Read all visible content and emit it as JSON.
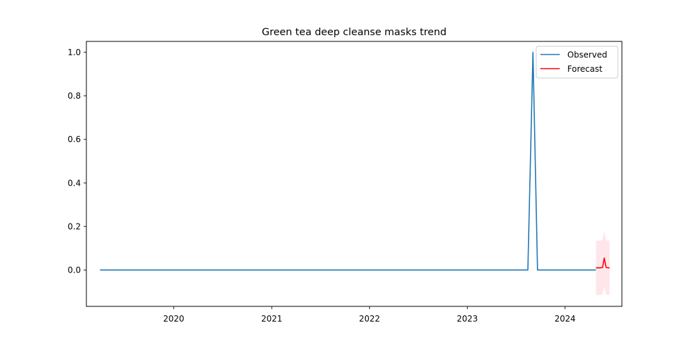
{
  "chart_data": {
    "type": "line",
    "title": "Green tea deep cleanse masks trend",
    "xlabel": "",
    "ylabel": "",
    "xlim": [
      "2019-02-09",
      "2024-07-31"
    ],
    "ylim": [
      -0.167,
      1.05
    ],
    "x_ticks": [
      "2020",
      "2021",
      "2022",
      "2023",
      "2024"
    ],
    "y_ticks": [
      "0.0",
      "0.2",
      "0.4",
      "0.6",
      "0.8",
      "1.0"
    ],
    "legend": {
      "position": "top-right",
      "entries": [
        "Observed",
        "Forecast"
      ]
    },
    "grid": false,
    "series": [
      {
        "name": "Observed",
        "color": "#1f77b4",
        "points": [
          [
            "2019-04-01",
            0.0
          ],
          [
            "2023-08-15",
            0.0
          ],
          [
            "2023-09-03",
            1.0
          ],
          [
            "2023-09-20",
            0.0
          ],
          [
            "2024-04-25",
            0.0
          ]
        ]
      },
      {
        "name": "Forecast",
        "color": "#ff0000",
        "points": [
          [
            "2024-04-25",
            0.01
          ],
          [
            "2024-05-10",
            0.01
          ],
          [
            "2024-05-20",
            0.012
          ],
          [
            "2024-05-26",
            0.055
          ],
          [
            "2024-06-02",
            0.012
          ],
          [
            "2024-06-10",
            0.01
          ],
          [
            "2024-06-15",
            0.01
          ]
        ]
      }
    ],
    "confidence_band": {
      "color": "#ffc0cb",
      "points": [
        [
          "2024-04-25",
          -0.115,
          0.135
        ],
        [
          "2024-05-15",
          -0.115,
          0.135
        ],
        [
          "2024-05-20",
          -0.112,
          0.14
        ],
        [
          "2024-05-26",
          -0.075,
          0.178
        ],
        [
          "2024-06-02",
          -0.112,
          0.14
        ],
        [
          "2024-06-10",
          -0.115,
          0.135
        ],
        [
          "2024-06-15",
          -0.115,
          0.135
        ]
      ]
    }
  }
}
